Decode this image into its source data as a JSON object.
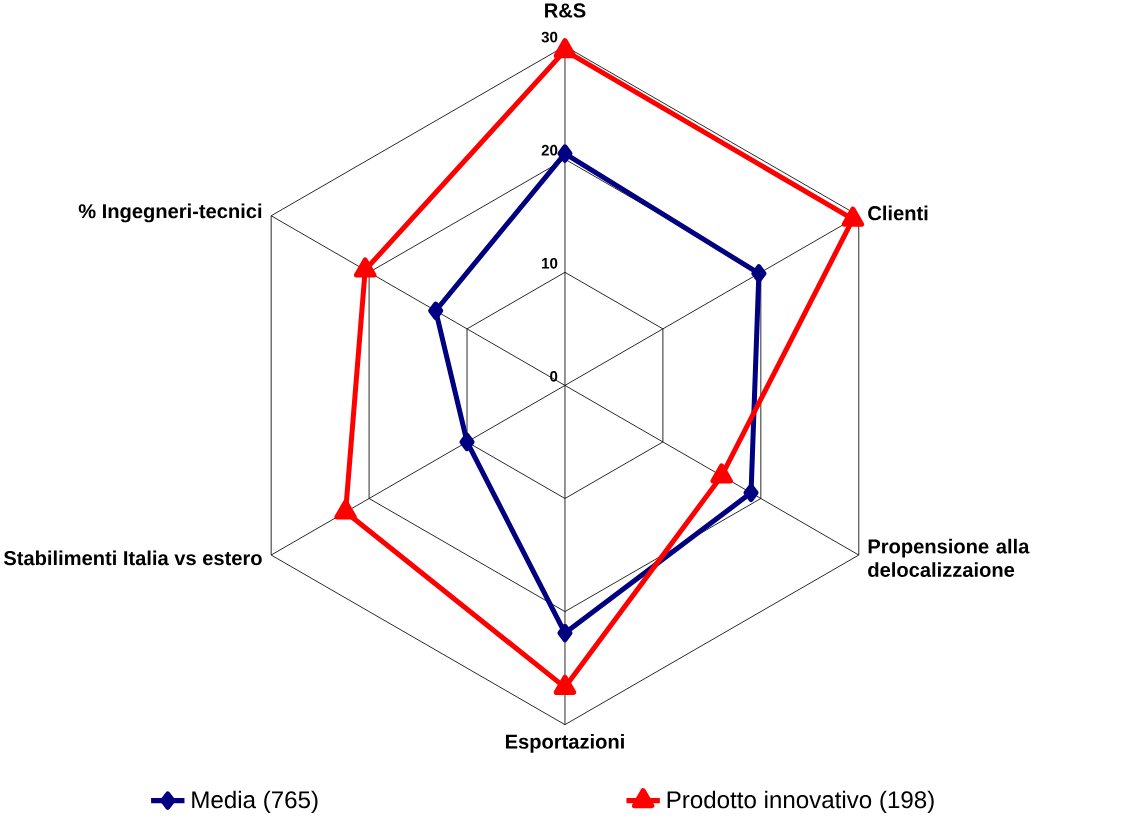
{
  "chart_data": {
    "type": "radar",
    "categories": [
      "R&S",
      "Clienti",
      "Propensione alla delocalizzaione",
      "Esportazioni",
      "Stabilimenti Italia vs estero",
      "% Ingegneri-tecnici"
    ],
    "ylim": [
      0,
      30
    ],
    "yticks": [
      0,
      10,
      20,
      30
    ],
    "grid": true,
    "legend": "bottom",
    "series": [
      {
        "name": "Media (765)",
        "color": "#000080",
        "marker": "diamond",
        "values": [
          20.5,
          19.8,
          19,
          21.9,
          10,
          13.2
        ]
      },
      {
        "name": "Prodotto innovativo (198)",
        "color": "#ff0000",
        "marker": "triangle",
        "values": [
          29.6,
          29.4,
          16,
          26.7,
          22.4,
          20.4
        ]
      }
    ]
  }
}
